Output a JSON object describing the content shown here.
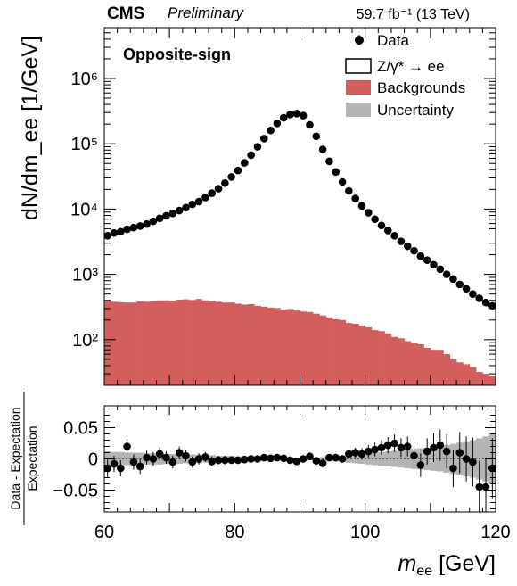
{
  "header": {
    "experiment": "CMS",
    "status": "Preliminary",
    "lumi": "59.7 fb⁻¹ (13 TeV)"
  },
  "region_label": "Opposite-sign",
  "legend": {
    "data": "Data",
    "signal": "Z/γ* → ee",
    "backgrounds": "Backgrounds",
    "uncertainty": "Uncertainty"
  },
  "colors": {
    "data": "#000000",
    "signal_fill": "#ffffff",
    "backgrounds": "#d25e5e",
    "uncertainty": "#b4b4b4"
  },
  "chart_data": {
    "type": "scatter",
    "x_bin_width_gev": 1,
    "top_panel": {
      "ylabel": "dN/dm_ee [1/GeV]",
      "yscale": "log",
      "ylim": [
        20,
        6000000
      ],
      "xlim": [
        60,
        120
      ],
      "y_ticks": [
        "10²",
        "10³",
        "10⁴",
        "10⁵",
        "10⁶"
      ],
      "series": [
        {
          "name": "Data",
          "style": "markers",
          "x": [
            60.5,
            61.5,
            62.5,
            63.5,
            64.5,
            65.5,
            66.5,
            67.5,
            68.5,
            69.5,
            70.5,
            71.5,
            72.5,
            73.5,
            74.5,
            75.5,
            76.5,
            77.5,
            78.5,
            79.5,
            80.5,
            81.5,
            82.5,
            83.5,
            84.5,
            85.5,
            86.5,
            87.5,
            88.5,
            89.5,
            90.5,
            91.5,
            92.5,
            93.5,
            94.5,
            95.5,
            96.5,
            97.5,
            98.5,
            99.5,
            100.5,
            101.5,
            102.5,
            103.5,
            104.5,
            105.5,
            106.5,
            107.5,
            108.5,
            109.5,
            110.5,
            111.5,
            112.5,
            113.5,
            114.5,
            115.5,
            116.5,
            117.5,
            118.5,
            119.5
          ],
          "y": [
            3900,
            4300,
            4500,
            4900,
            5200,
            5500,
            5900,
            6500,
            7200,
            7900,
            8600,
            9500,
            10500,
            11800,
            13000,
            15000,
            17500,
            20500,
            25000,
            31000,
            39000,
            51000,
            67000,
            90000,
            120000,
            160000,
            205000,
            250000,
            280000,
            290000,
            270000,
            195000,
            130000,
            82000,
            54000,
            37000,
            26000,
            19000,
            14500,
            11200,
            8800,
            7000,
            5600,
            4700,
            3900,
            3200,
            2700,
            2300,
            1900,
            1650,
            1400,
            1200,
            1000,
            850,
            700,
            600,
            500,
            430,
            370,
            330
          ]
        },
        {
          "name": "Backgrounds",
          "style": "histogram",
          "x": [
            60.5,
            61.5,
            62.5,
            63.5,
            64.5,
            65.5,
            66.5,
            67.5,
            68.5,
            69.5,
            70.5,
            71.5,
            72.5,
            73.5,
            74.5,
            75.5,
            76.5,
            77.5,
            78.5,
            79.5,
            80.5,
            81.5,
            82.5,
            83.5,
            84.5,
            85.5,
            86.5,
            87.5,
            88.5,
            89.5,
            90.5,
            91.5,
            92.5,
            93.5,
            94.5,
            95.5,
            96.5,
            97.5,
            98.5,
            99.5,
            100.5,
            101.5,
            102.5,
            103.5,
            104.5,
            105.5,
            106.5,
            107.5,
            108.5,
            109.5,
            110.5,
            111.5,
            112.5,
            113.5,
            114.5,
            115.5,
            116.5,
            117.5,
            118.5,
            119.5
          ],
          "y": [
            390,
            380,
            375,
            370,
            370,
            385,
            380,
            395,
            400,
            400,
            395,
            410,
            415,
            405,
            420,
            400,
            395,
            380,
            370,
            370,
            355,
            345,
            350,
            330,
            320,
            310,
            305,
            290,
            295,
            280,
            270,
            265,
            250,
            235,
            220,
            205,
            200,
            180,
            175,
            165,
            155,
            140,
            135,
            125,
            110,
            105,
            95,
            90,
            85,
            75,
            70,
            70,
            60,
            50,
            45,
            42,
            38,
            32,
            30,
            28
          ]
        }
      ]
    },
    "ratio_panel": {
      "ylabel_numerator": "Data - Expectation",
      "ylabel_denominator": "Expectation",
      "ylim": [
        -0.085,
        0.085
      ],
      "y_ticks": [
        "0.05",
        "0",
        "−0.05"
      ],
      "x_ticks": [
        "60",
        "80",
        "100",
        "120"
      ],
      "xlabel": "m_ee [GeV]",
      "data": {
        "x": [
          60.5,
          61.5,
          62.5,
          63.5,
          64.5,
          65.5,
          66.5,
          67.5,
          68.5,
          69.5,
          70.5,
          71.5,
          72.5,
          73.5,
          74.5,
          75.5,
          76.5,
          77.5,
          78.5,
          79.5,
          80.5,
          81.5,
          82.5,
          83.5,
          84.5,
          85.5,
          86.5,
          87.5,
          88.5,
          89.5,
          90.5,
          91.5,
          92.5,
          93.5,
          94.5,
          95.5,
          96.5,
          97.5,
          98.5,
          99.5,
          100.5,
          101.5,
          102.5,
          103.5,
          104.5,
          105.5,
          106.5,
          107.5,
          108.5,
          109.5,
          110.5,
          111.5,
          112.5,
          113.5,
          114.5,
          115.5,
          116.5,
          117.5,
          118.5,
          119.5
        ],
        "y": [
          -0.015,
          -0.008,
          -0.015,
          0.02,
          -0.005,
          -0.012,
          0.002,
          0.0,
          0.008,
          0.002,
          -0.005,
          0.01,
          0.005,
          -0.005,
          0.0,
          0.003,
          -0.004,
          -0.002,
          -0.002,
          -0.002,
          -0.002,
          -0.001,
          0.0,
          0.0,
          0.002,
          0.001,
          0.002,
          0.001,
          -0.002,
          -0.004,
          0.0,
          0.004,
          -0.003,
          -0.007,
          0.002,
          0.002,
          0.0,
          0.008,
          0.01,
          0.008,
          0.012,
          0.015,
          0.018,
          0.022,
          0.025,
          0.018,
          0.02,
          0.005,
          -0.01,
          0.012,
          0.018,
          0.022,
          0.012,
          -0.015,
          0.01,
          0.0,
          -0.005,
          -0.045,
          -0.045,
          -0.015
        ],
        "err": [
          0.014,
          0.013,
          0.013,
          0.012,
          0.012,
          0.012,
          0.011,
          0.011,
          0.011,
          0.01,
          0.01,
          0.01,
          0.009,
          0.009,
          0.009,
          0.008,
          0.008,
          0.007,
          0.007,
          0.006,
          0.006,
          0.005,
          0.005,
          0.004,
          0.003,
          0.003,
          0.003,
          0.002,
          0.002,
          0.002,
          0.002,
          0.002,
          0.003,
          0.003,
          0.004,
          0.005,
          0.006,
          0.007,
          0.008,
          0.009,
          0.01,
          0.011,
          0.012,
          0.013,
          0.014,
          0.015,
          0.016,
          0.017,
          0.019,
          0.021,
          0.023,
          0.025,
          0.027,
          0.03,
          0.033,
          0.036,
          0.039,
          0.042,
          0.045,
          0.048
        ]
      },
      "uncertainty_band": {
        "x": [
          60.5,
          61.5,
          62.5,
          63.5,
          64.5,
          65.5,
          66.5,
          67.5,
          68.5,
          69.5,
          70.5,
          71.5,
          72.5,
          73.5,
          74.5,
          75.5,
          76.5,
          77.5,
          78.5,
          79.5,
          80.5,
          81.5,
          82.5,
          83.5,
          84.5,
          85.5,
          86.5,
          87.5,
          88.5,
          89.5,
          90.5,
          91.5,
          92.5,
          93.5,
          94.5,
          95.5,
          96.5,
          97.5,
          98.5,
          99.5,
          100.5,
          101.5,
          102.5,
          103.5,
          104.5,
          105.5,
          106.5,
          107.5,
          108.5,
          109.5,
          110.5,
          111.5,
          112.5,
          113.5,
          114.5,
          115.5,
          116.5,
          117.5,
          118.5,
          119.5
        ],
        "half_width": [
          0.012,
          0.011,
          0.011,
          0.01,
          0.01,
          0.01,
          0.009,
          0.009,
          0.009,
          0.008,
          0.008,
          0.008,
          0.007,
          0.007,
          0.007,
          0.006,
          0.006,
          0.005,
          0.005,
          0.005,
          0.004,
          0.004,
          0.003,
          0.003,
          0.003,
          0.002,
          0.002,
          0.002,
          0.002,
          0.002,
          0.002,
          0.002,
          0.002,
          0.003,
          0.003,
          0.004,
          0.005,
          0.006,
          0.007,
          0.008,
          0.009,
          0.01,
          0.011,
          0.012,
          0.013,
          0.014,
          0.015,
          0.016,
          0.017,
          0.018,
          0.019,
          0.02,
          0.022,
          0.024,
          0.026,
          0.028,
          0.03,
          0.033,
          0.036,
          0.04
        ]
      }
    }
  }
}
